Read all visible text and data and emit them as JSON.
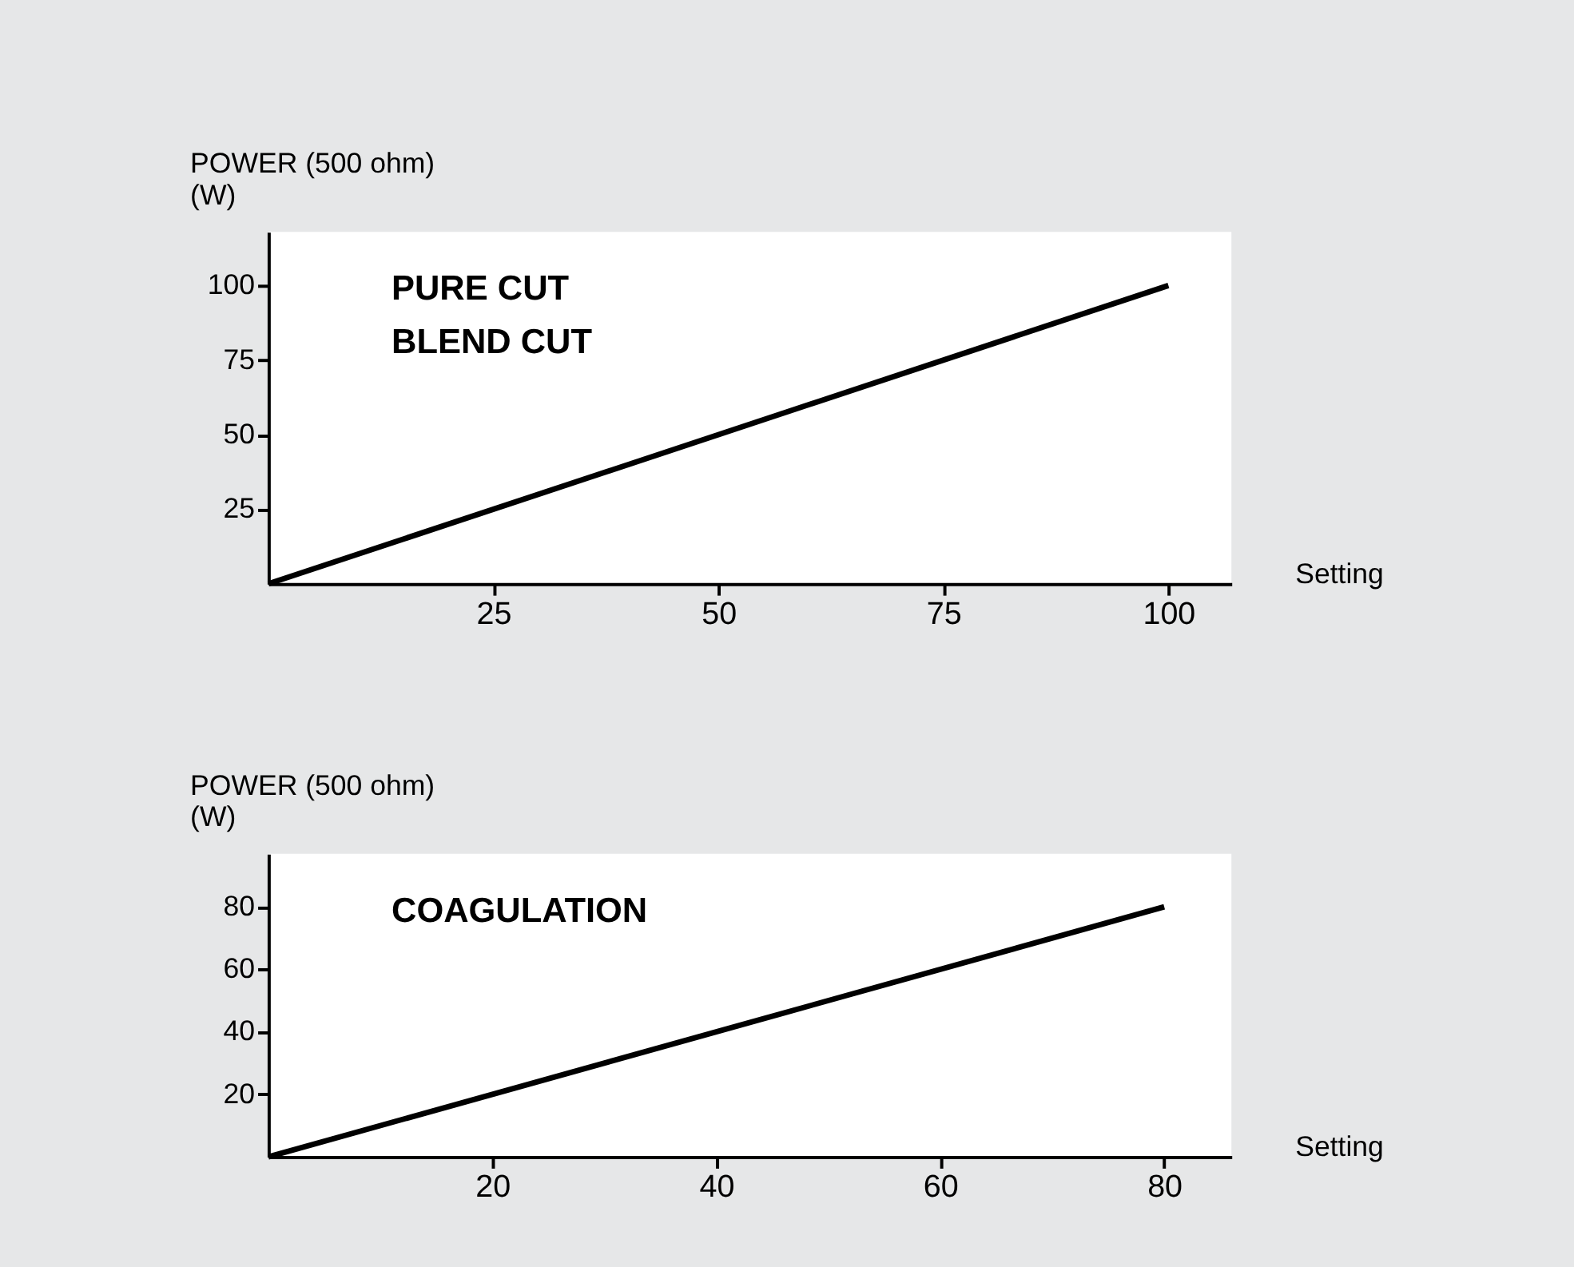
{
  "chart_data": [
    {
      "type": "line",
      "x": [
        0,
        100
      ],
      "series": [
        {
          "color": "#000000",
          "values": [
            0,
            100
          ]
        }
      ],
      "xlim": [
        0,
        107
      ],
      "ylim": [
        0,
        118
      ],
      "xticks": [
        25,
        50,
        75,
        100
      ],
      "yticks": [
        25,
        50,
        75,
        100
      ],
      "xlabel": "Setting",
      "ylabel": "POWER (500 ohm)\n(W)",
      "annotations": [
        "PURE CUT",
        "BLEND CUT"
      ]
    },
    {
      "type": "line",
      "x": [
        0,
        80
      ],
      "series": [
        {
          "color": "#000000",
          "values": [
            0,
            80
          ]
        }
      ],
      "xlim": [
        0,
        86
      ],
      "ylim": [
        0,
        97
      ],
      "xticks": [
        20,
        40,
        60,
        80
      ],
      "yticks": [
        20,
        40,
        60,
        80
      ],
      "xlabel": "Setting",
      "ylabel": "POWER (500 ohm)\n(W)",
      "annotations": [
        "COAGULATION"
      ]
    }
  ]
}
